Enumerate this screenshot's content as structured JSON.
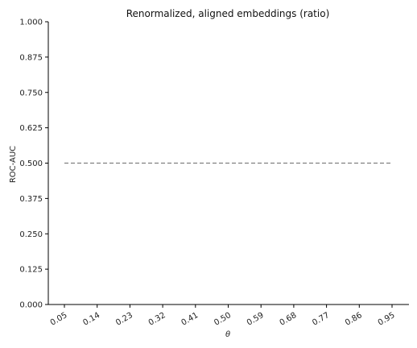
{
  "chart_data": {
    "type": "line",
    "title": "Renormalized, aligned embeddings (ratio)",
    "xlabel": "θ",
    "ylabel": "ROC-AUC",
    "categories": [
      "0.05",
      "0.14",
      "0.23",
      "0.32",
      "0.41",
      "0.50",
      "0.59",
      "0.68",
      "0.77",
      "0.86",
      "0.95"
    ],
    "ylim": [
      0,
      1
    ],
    "yticks": [
      "0.000",
      "0.125",
      "0.250",
      "0.375",
      "0.500",
      "0.625",
      "0.750",
      "0.875",
      "1.000"
    ],
    "series": [
      {
        "values": [
          0.5,
          0.5,
          0.5,
          0.5,
          0.5,
          0.5,
          0.5,
          0.5,
          0.5,
          0.5,
          0.5
        ],
        "color": "#808080",
        "style": "dashed"
      }
    ],
    "grid": false,
    "legend": "none"
  }
}
